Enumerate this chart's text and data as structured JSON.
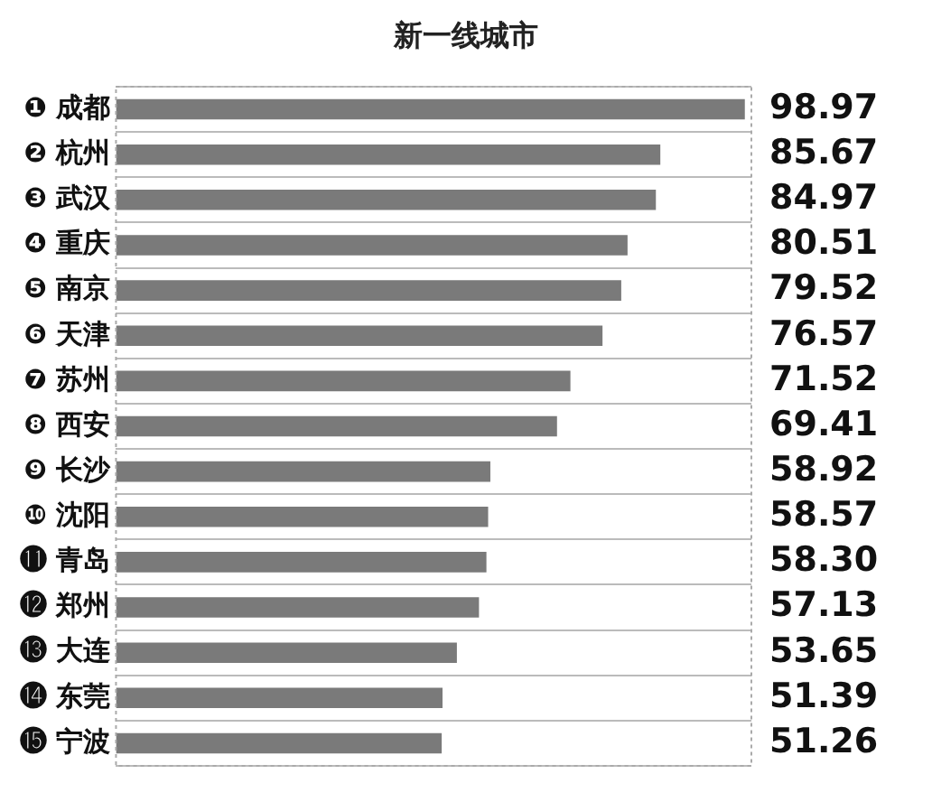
{
  "chart_data": {
    "type": "bar",
    "orientation": "horizontal",
    "title": "新一线城市",
    "categories": [
      "❶ 成都",
      "❷ 杭州",
      "❸ 武汉",
      "❹ 重庆",
      "❺ 南京",
      "❻ 天津",
      "❼ 苏州",
      "❽ 西安",
      "❾ 长沙",
      "❿ 沈阳",
      "⓫ 青岛",
      "⓬ 郑州",
      "⓭ 大连",
      "⓮ 东莞",
      "⓯ 宁波"
    ],
    "values": [
      98.97,
      85.67,
      84.97,
      80.51,
      79.52,
      76.57,
      71.52,
      69.41,
      58.92,
      58.57,
      58.3,
      57.13,
      53.65,
      51.39,
      51.26
    ],
    "value_labels": [
      "98.97",
      "85.67",
      "84.97",
      "80.51",
      "79.52",
      "76.57",
      "71.52",
      "69.41",
      "58.92",
      "58.57",
      "58.30",
      "57.13",
      "53.65",
      "51.39",
      "51.26"
    ],
    "color": "#7a7a7a",
    "xlim": [
      0,
      100
    ],
    "grid": "y",
    "tick_labels": "y",
    "legend": false
  }
}
